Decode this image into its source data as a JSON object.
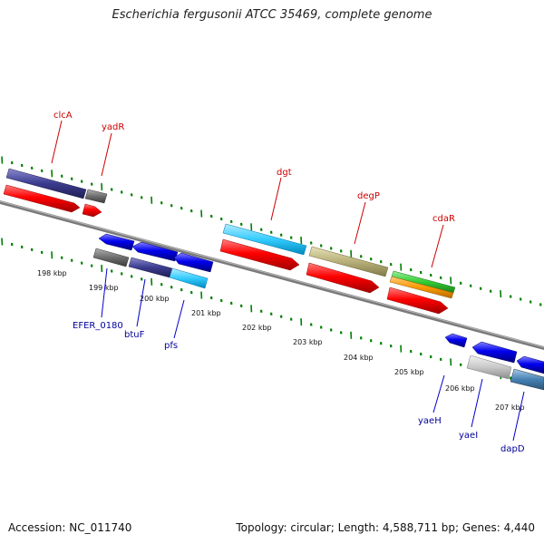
{
  "title": "Escherichia fergusonii ATCC 35469, complete genome",
  "footer": {
    "accession": "Accession: NC_011740",
    "summary": "Topology: circular; Length: 4,588,711 bp; Genes: 4,440"
  },
  "colors": {
    "red": "#ff0000",
    "blue": "#0000ee",
    "navy": "#3b3b8f",
    "gray": "#6e6e6e",
    "cyan": "#33ccff",
    "khaki": "#b8b07a",
    "green": "#33cc33",
    "orange": "#ff9900",
    "silver": "#c8c8c8",
    "steel": "#4682b4",
    "tick": "#008000",
    "above_label": "#cc0000",
    "below_label": "#000099"
  },
  "scale_labels": [
    "198 kbp",
    "199 kbp",
    "200 kbp",
    "201 kbp",
    "202 kbp",
    "203 kbp",
    "204 kbp",
    "205 kbp",
    "206 kbp",
    "207 kbp"
  ],
  "genes_above": [
    {
      "label": "clcA",
      "color_key": "navy"
    },
    {
      "label": "yadR",
      "color_key": "gray"
    },
    {
      "label": "dgt",
      "color_key": "cyan"
    },
    {
      "label": "degP",
      "color_key": "khaki"
    },
    {
      "label": "cdaR",
      "color_key": "green"
    }
  ],
  "genes_below": [
    {
      "label": "EFER_0180",
      "color_key": "gray"
    },
    {
      "label": "btuF",
      "color_key": "navy"
    },
    {
      "label": "pfs",
      "color_key": "cyan"
    },
    {
      "label": "yaeH",
      "color_key": "silver"
    },
    {
      "label": "yaeI",
      "color_key": "steel"
    },
    {
      "label": "dapD",
      "color_key": "steel"
    }
  ]
}
